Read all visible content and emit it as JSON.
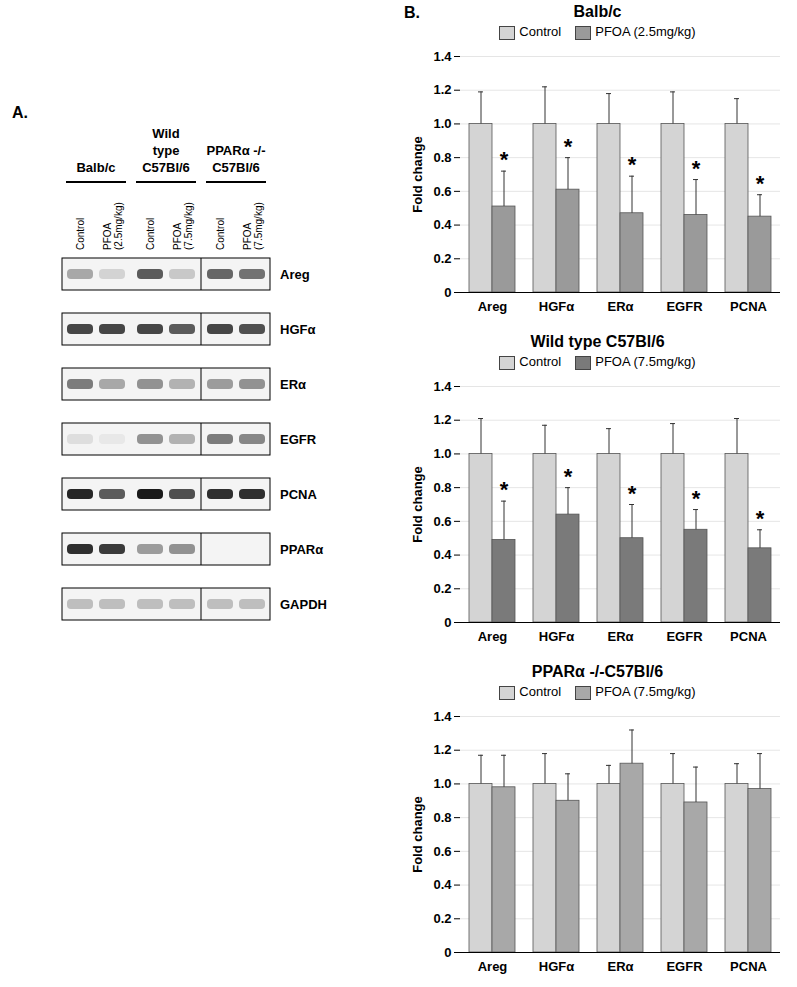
{
  "panel_a": {
    "label": "A.",
    "groups": [
      {
        "lines": [
          "Balb/c"
        ],
        "lanes": [
          [
            "Control"
          ],
          [
            "PFOA",
            "(2.5mg/kg)"
          ]
        ]
      },
      {
        "lines": [
          "Wild",
          "type",
          "C57Bl/6"
        ],
        "lanes": [
          [
            "Control"
          ],
          [
            "PFOA",
            "(7.5mg/kg)"
          ]
        ]
      },
      {
        "lines": [
          "PPARα -/-",
          "C57Bl/6"
        ],
        "lanes": [
          [
            "Control"
          ],
          [
            "PFOA",
            "(7.5mg/kg)"
          ]
        ]
      }
    ],
    "rows": [
      {
        "name": "Areg",
        "intensity": [
          0.35,
          0.15,
          0.7,
          0.2,
          0.65,
          0.6
        ]
      },
      {
        "name": "HGFα",
        "intensity": [
          0.8,
          0.8,
          0.8,
          0.7,
          0.8,
          0.75
        ]
      },
      {
        "name": "ERα",
        "intensity": [
          0.55,
          0.35,
          0.45,
          0.3,
          0.4,
          0.45
        ]
      },
      {
        "name": "EGFR",
        "intensity": [
          0.1,
          0.05,
          0.45,
          0.3,
          0.55,
          0.5
        ]
      },
      {
        "name": "PCNA",
        "intensity": [
          0.95,
          0.7,
          1.0,
          0.75,
          0.9,
          0.9
        ]
      },
      {
        "name": "PPARα",
        "intensity": [
          0.9,
          0.85,
          0.4,
          0.45,
          0,
          0
        ]
      },
      {
        "name": "GAPDH",
        "intensity": [
          0.25,
          0.25,
          0.25,
          0.25,
          0.25,
          0.25
        ]
      }
    ]
  },
  "panel_b_label": "B.",
  "chart_data": [
    {
      "type": "bar",
      "title": "Balb/c",
      "y_label": "Fold change",
      "categories": [
        "Areg",
        "HGFα",
        "ERα",
        "EGFR",
        "PCNA"
      ],
      "series": [
        {
          "name": "Control",
          "color": "#d4d4d4",
          "values": [
            1,
            1,
            1,
            1,
            1
          ],
          "errors": [
            0.19,
            0.22,
            0.18,
            0.19,
            0.15
          ]
        },
        {
          "name": "PFOA (2.5mg/kg)",
          "color": "#9a9a9a",
          "values": [
            0.51,
            0.61,
            0.47,
            0.46,
            0.45
          ],
          "errors": [
            0.21,
            0.19,
            0.22,
            0.21,
            0.13
          ],
          "significance": [
            "*",
            "*",
            "*",
            "*",
            "*"
          ]
        }
      ],
      "ylim": [
        0,
        1.4
      ],
      "yticks": [
        0,
        0.2,
        0.4,
        0.6,
        0.8,
        {
          "value": 1,
          "label": "1.0"
        },
        1.2,
        1.4
      ],
      "grid": true,
      "legend": "top"
    },
    {
      "type": "bar",
      "title": "Wild type C57Bl/6",
      "y_label": "Fold change",
      "categories": [
        "Areg",
        "HGFα",
        "ERα",
        "EGFR",
        "PCNA"
      ],
      "series": [
        {
          "name": "Control",
          "color": "#d4d4d4",
          "values": [
            1,
            1,
            1,
            1,
            1
          ],
          "errors": [
            0.21,
            0.17,
            0.15,
            0.18,
            0.21
          ]
        },
        {
          "name": "PFOA (7.5mg/kg)",
          "color": "#7a7a7a",
          "values": [
            0.49,
            0.64,
            0.5,
            0.55,
            0.44
          ],
          "errors": [
            0.23,
            0.16,
            0.2,
            0.12,
            0.11
          ],
          "significance": [
            "*",
            "*",
            "*",
            "*",
            "*"
          ]
        }
      ],
      "ylim": [
        0,
        1.4
      ],
      "yticks": [
        0,
        0.2,
        0.4,
        0.6,
        0.8,
        {
          "value": 1,
          "label": "1.0"
        },
        1.2,
        1.4
      ],
      "grid": true,
      "legend": "top"
    },
    {
      "type": "bar",
      "title": "PPARα -/-C57Bl/6",
      "y_label": "Fold change",
      "categories": [
        "Areg",
        "HGFα",
        "ERα",
        "EGFR",
        "PCNA"
      ],
      "series": [
        {
          "name": "Control",
          "color": "#d4d4d4",
          "values": [
            1,
            1,
            1,
            1,
            1
          ],
          "errors": [
            0.17,
            0.18,
            0.11,
            0.18,
            0.12
          ]
        },
        {
          "name": "PFOA (7.5mg/kg)",
          "color": "#a8a8a8",
          "values": [
            0.98,
            0.9,
            1.12,
            0.89,
            0.97
          ],
          "errors": [
            0.19,
            0.16,
            0.2,
            0.21,
            0.21
          ]
        }
      ],
      "ylim": [
        0,
        1.4
      ],
      "yticks": [
        0,
        0.2,
        0.4,
        0.6,
        0.8,
        {
          "value": 1,
          "label": "1.0"
        },
        1.2,
        1.4
      ],
      "grid": true,
      "legend": "top"
    }
  ]
}
